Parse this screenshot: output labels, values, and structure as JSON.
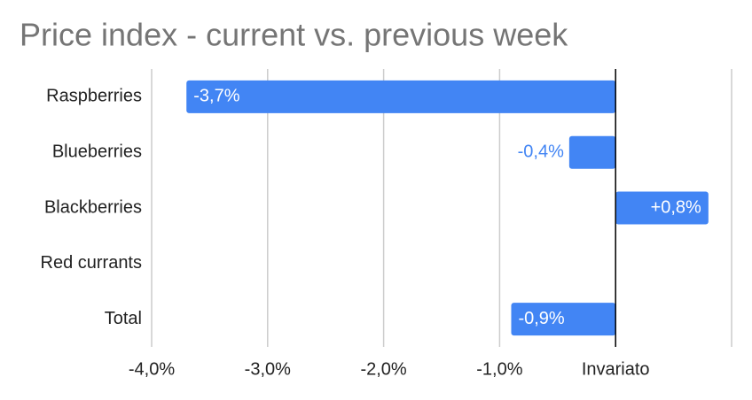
{
  "chart_data": {
    "type": "bar",
    "orientation": "horizontal",
    "title": "Price index - current vs. previous week",
    "categories": [
      "Raspberries",
      "Blueberries",
      "Blackberries",
      "Red currants",
      "Total"
    ],
    "values": [
      -3.7,
      -0.4,
      0.8,
      null,
      -0.9
    ],
    "value_labels": [
      "-3,7%",
      "-0,4%",
      "+0,8%",
      null,
      "-0,9%"
    ],
    "color": "#4285f4",
    "xlim": [
      -4,
      1
    ],
    "xticks": [
      {
        "value": -4,
        "label": "-4,0%"
      },
      {
        "value": -3,
        "label": "-3,0%"
      },
      {
        "value": -2,
        "label": "-2,0%"
      },
      {
        "value": -1,
        "label": "-1,0%"
      },
      {
        "value": 0,
        "label": "Invariato"
      }
    ],
    "grid": true
  }
}
